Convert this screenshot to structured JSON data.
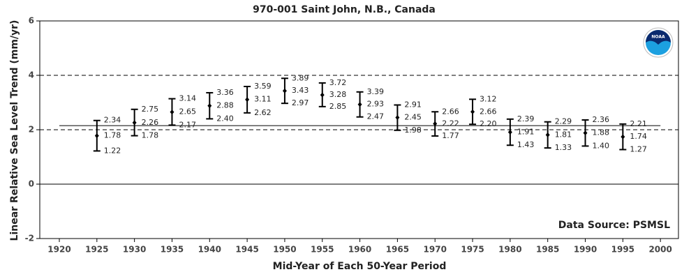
{
  "chart_data": {
    "type": "errorbar",
    "title": "970-001 Saint John, N.B., Canada",
    "xlabel": "Mid-Year of Each 50-Year Period",
    "ylabel": "Linear Relative Sea Level Trend (mm/yr)",
    "annotation": "Data Source: PSMSL",
    "logo_text": "NOAA",
    "x": [
      1925,
      1930,
      1935,
      1940,
      1945,
      1950,
      1955,
      1960,
      1965,
      1970,
      1975,
      1980,
      1985,
      1990,
      1995
    ],
    "values": [
      1.78,
      2.26,
      2.65,
      2.88,
      3.11,
      3.43,
      3.28,
      2.93,
      2.45,
      2.22,
      2.66,
      1.91,
      1.81,
      1.88,
      1.74
    ],
    "value_labels": [
      "1.78",
      "2.26",
      "2.65",
      "2.88",
      "3.11",
      "3.43",
      "3.28",
      "2.93",
      "2.45",
      "2.22",
      "2.66",
      "1.91",
      "1.81",
      "1.88",
      "1.74"
    ],
    "upper": [
      2.34,
      2.75,
      3.14,
      3.36,
      3.59,
      3.89,
      3.72,
      3.39,
      2.91,
      2.66,
      3.12,
      2.39,
      2.29,
      2.36,
      2.21
    ],
    "upper_labels": [
      "2.34",
      "2.75",
      "3.14",
      "3.36",
      "3.59",
      "3.89",
      "3.72",
      "3.39",
      "2.91",
      "2.66",
      "3.12",
      "2.39",
      "2.29",
      "2.36",
      "2.21"
    ],
    "lower": [
      1.22,
      1.78,
      2.17,
      2.4,
      2.62,
      2.97,
      2.85,
      2.47,
      1.98,
      1.77,
      2.2,
      1.43,
      1.33,
      1.4,
      1.27
    ],
    "lower_labels": [
      "1.22",
      "1.78",
      "2.17",
      "2.40",
      "2.62",
      "2.97",
      "2.85",
      "2.47",
      "1.98",
      "1.77",
      "2.20",
      "1.43",
      "1.33",
      "1.40",
      "1.27"
    ],
    "color": "#000000",
    "xlim": [
      1917.4,
      2002.4
    ],
    "xticks": [
      1920,
      1925,
      1930,
      1935,
      1940,
      1945,
      1950,
      1955,
      1960,
      1965,
      1970,
      1975,
      1980,
      1985,
      1990,
      1995,
      2000
    ],
    "ylim": [
      -2,
      6
    ],
    "yticks": [
      -2,
      0,
      2,
      4,
      6
    ],
    "dashed_lines": [
      2,
      4
    ],
    "solid_lines": [
      0,
      2.15
    ],
    "solid_line_xlim": [
      1920,
      2000
    ]
  }
}
